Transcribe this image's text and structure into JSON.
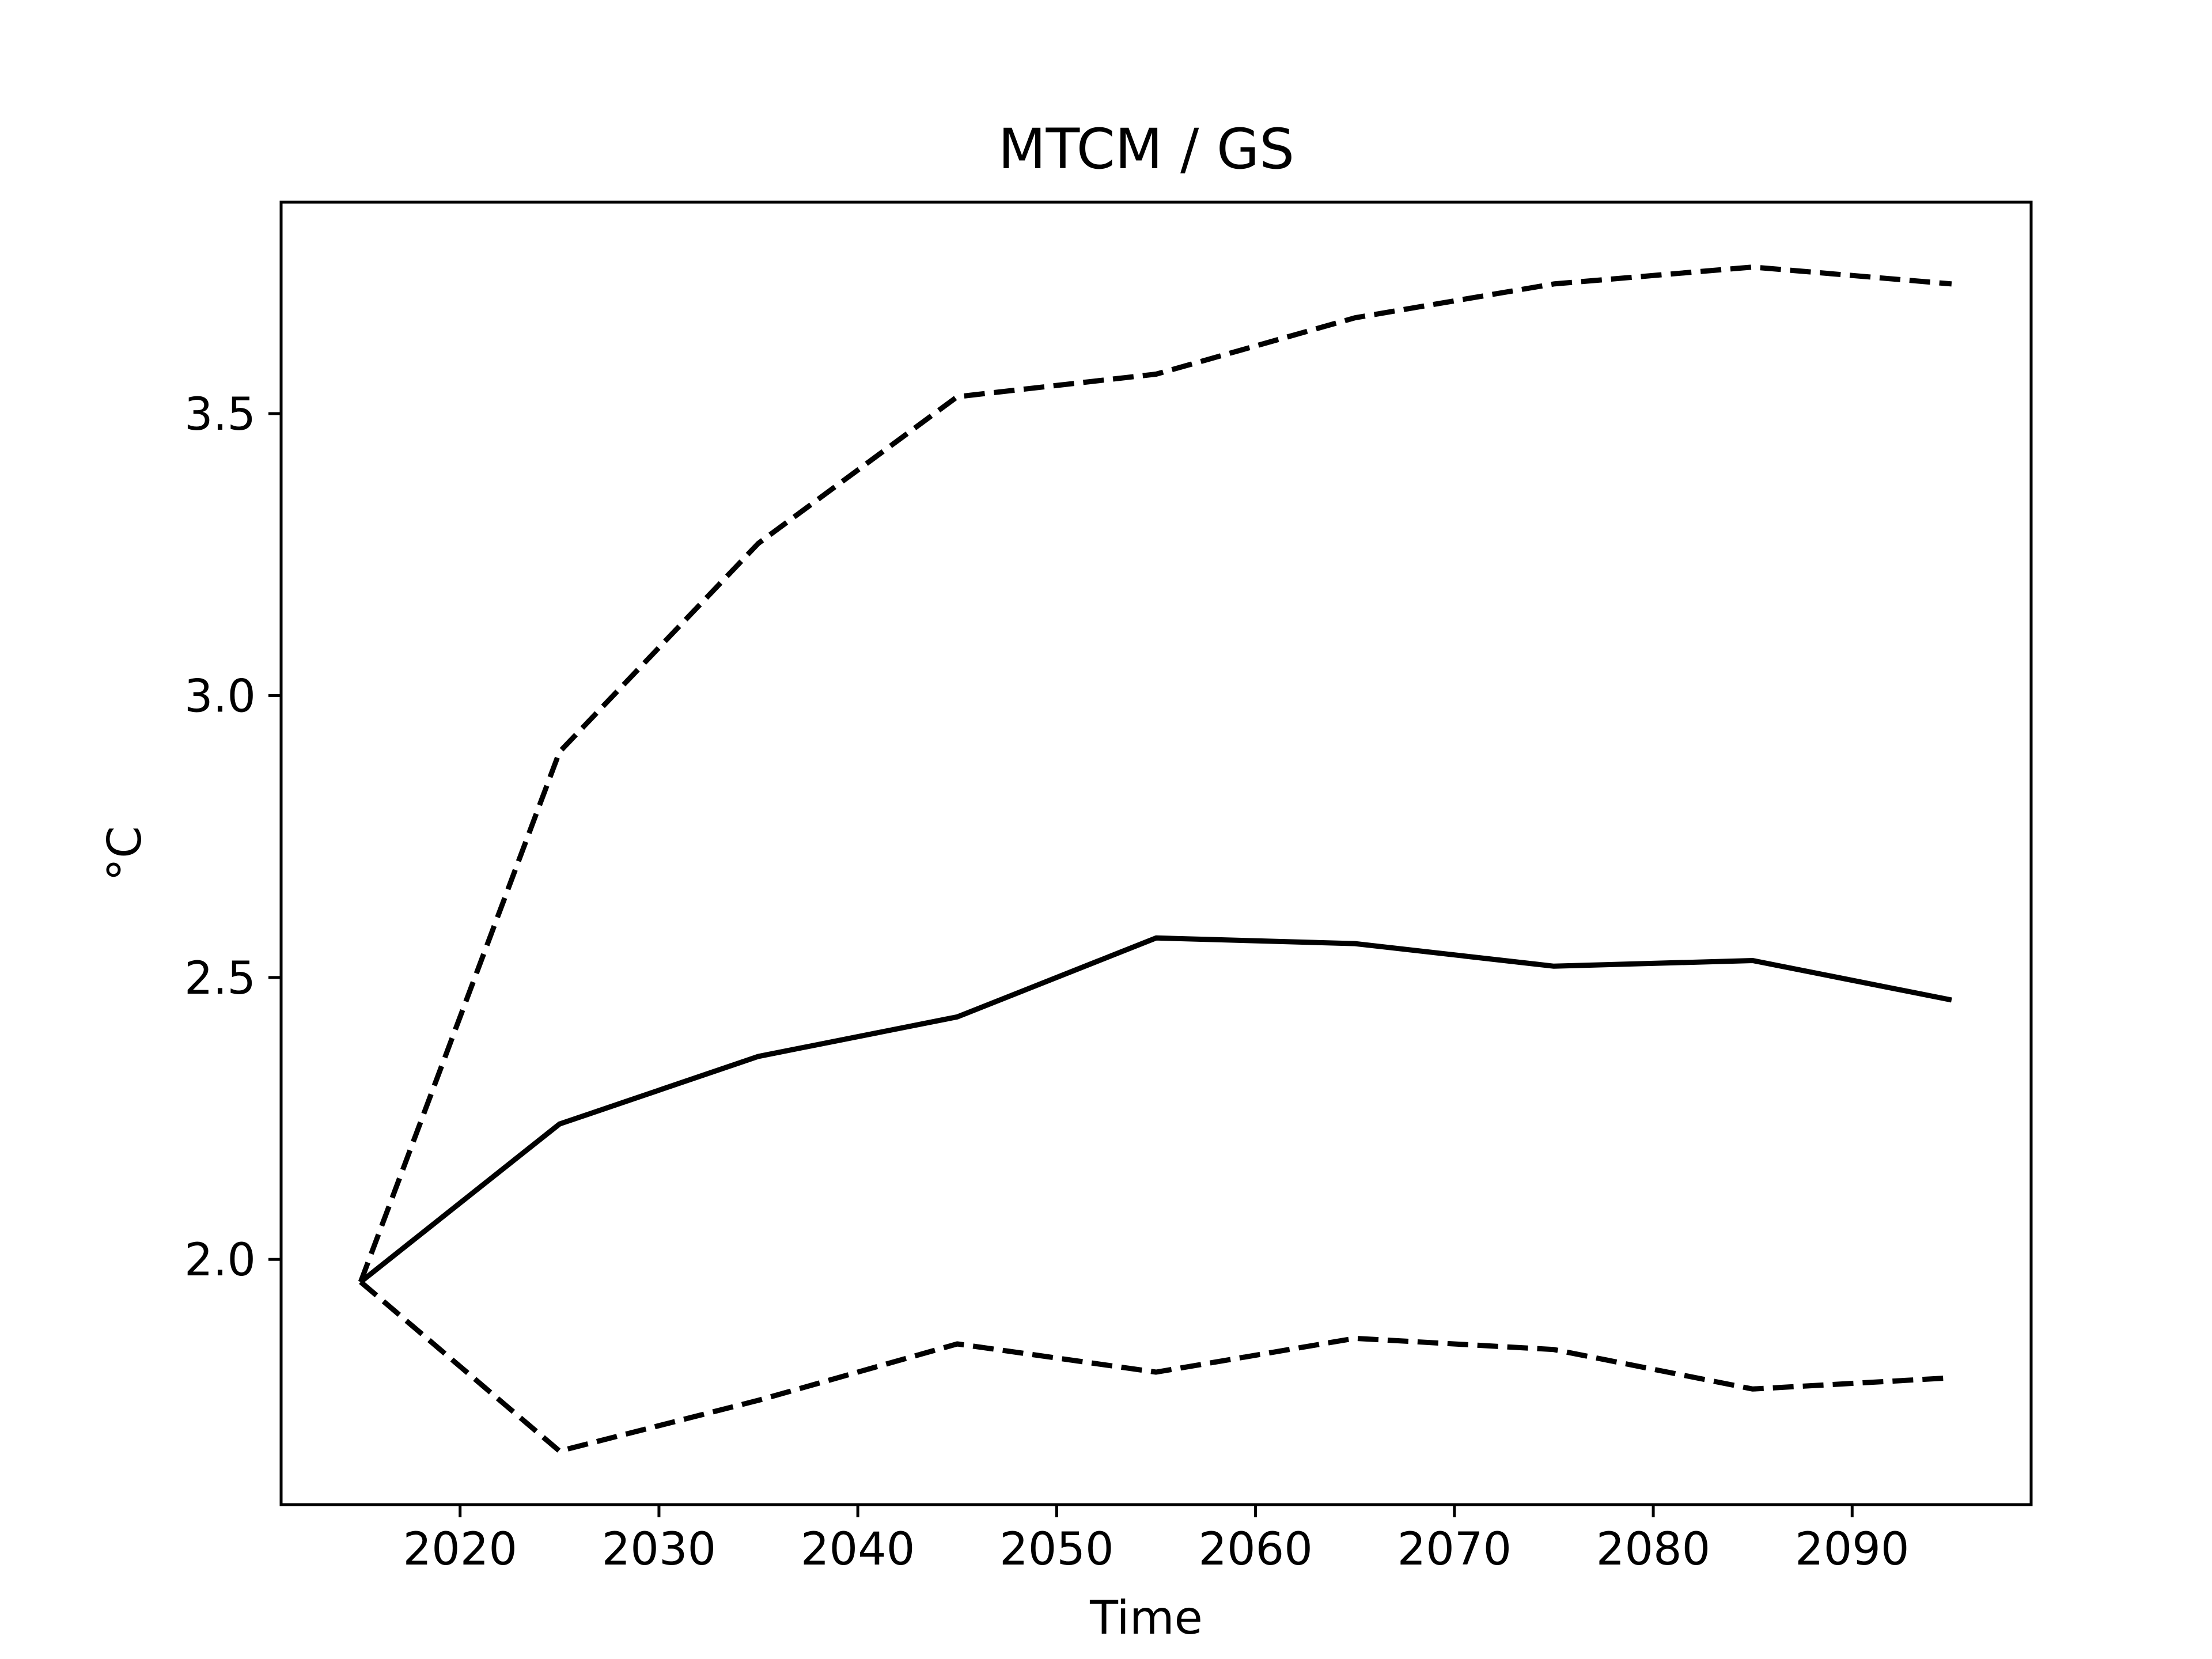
{
  "chart_data": {
    "type": "line",
    "title": "MTCM / GS",
    "xlabel": "Time",
    "ylabel": "°C",
    "xlim": [
      2011,
      2099
    ],
    "ylim": [
      1.565,
      3.875
    ],
    "xticks": [
      2020,
      2030,
      2040,
      2050,
      2060,
      2070,
      2080,
      2090
    ],
    "yticks": [
      2.0,
      2.5,
      3.0,
      3.5
    ],
    "ytick_labels": [
      "2.0",
      "2.5",
      "3.0",
      "3.5"
    ],
    "grid": false,
    "x": [
      2015,
      2025,
      2035,
      2045,
      2055,
      2065,
      2075,
      2085,
      2095
    ],
    "series": [
      {
        "style": "solid",
        "color": "#000000",
        "values": [
          1.96,
          2.24,
          2.36,
          2.43,
          2.57,
          2.56,
          2.52,
          2.53,
          2.46
        ]
      },
      {
        "style": "dashed",
        "color": "#000000",
        "values": [
          1.96,
          2.9,
          3.27,
          3.53,
          3.57,
          3.67,
          3.73,
          3.76,
          3.73
        ]
      },
      {
        "style": "dashed",
        "color": "#000000",
        "values": [
          1.96,
          1.66,
          1.75,
          1.85,
          1.8,
          1.86,
          1.84,
          1.77,
          1.79
        ]
      }
    ]
  }
}
